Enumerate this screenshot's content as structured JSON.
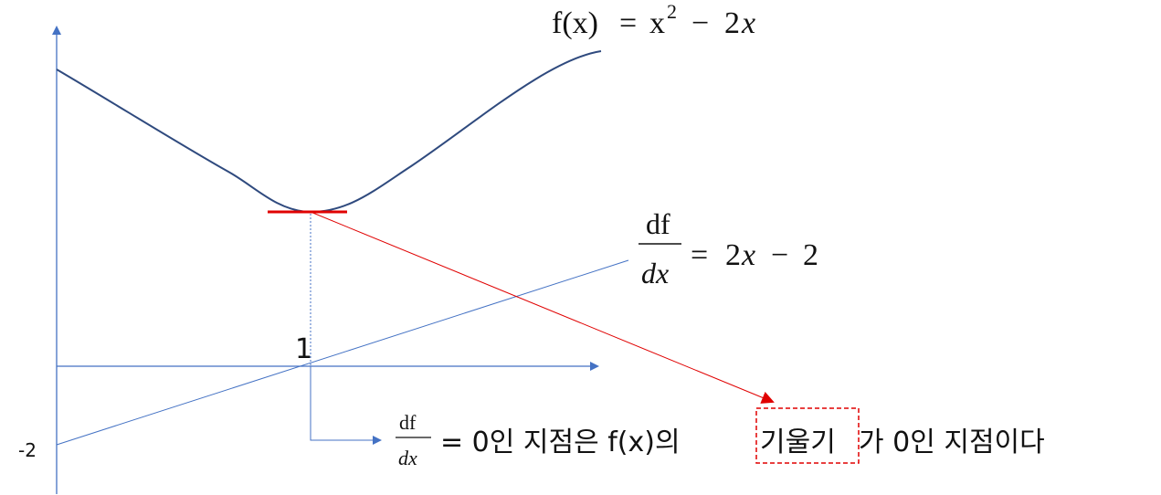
{
  "formulas": {
    "f_lhs": "f(x)",
    "f_eq": "=",
    "f_x": "x",
    "f_exp": "2",
    "f_minus": "−",
    "f_two": "2",
    "f_var": "x",
    "d_num": "df",
    "d_den": "dx",
    "d_rhs_eq": "=",
    "d_rhs_two": "2",
    "d_rhs_x": "x",
    "d_rhs_minus": "−",
    "d_rhs_const": "2"
  },
  "axis_labels": {
    "x_tick": "1",
    "y_tick": "-2"
  },
  "caption": {
    "frac_num": "df",
    "frac_den": "dx",
    "part1": "= 0인 지점은 f(x)의",
    "highlight": "기울기",
    "part2": "가 0인 지점이다"
  },
  "colors": {
    "axis": "#4472c4",
    "curve": "#2f4a7e",
    "tangent": "#e00000",
    "text": "#111111"
  }
}
